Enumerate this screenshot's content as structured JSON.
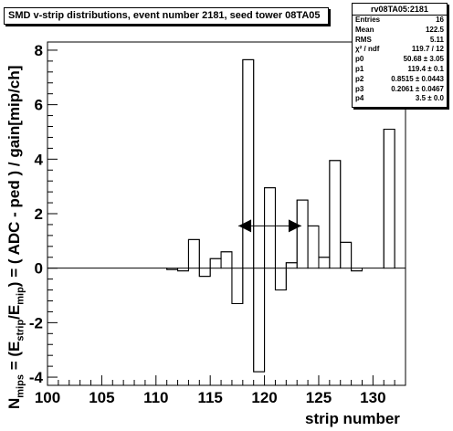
{
  "chart_data": {
    "type": "histogram",
    "title": "SMD v-strip distributions, event number 2181, seed tower 08TA05",
    "xlabel": "strip number",
    "ylabel": {
      "pre": "N",
      "pre_sub": "mips",
      "mid1": " = (E",
      "mid1_sub": "strip",
      "mid2": "/E",
      "mid2_sub": "mip",
      "post": ") = ( ADC - ped ) / gain[mip/ch]"
    },
    "xlim": [
      100,
      133
    ],
    "ylim": [
      -4.3,
      8.3
    ],
    "xticks": [
      "100",
      "105",
      "110",
      "115",
      "120",
      "125",
      "130"
    ],
    "yticks": [
      "-4",
      "-2",
      "0",
      "2",
      "4",
      "6",
      "8"
    ],
    "bins": [
      [
        100,
        0
      ],
      [
        101,
        0
      ],
      [
        102,
        0
      ],
      [
        103,
        0
      ],
      [
        104,
        0
      ],
      [
        105,
        0
      ],
      [
        106,
        0
      ],
      [
        107,
        0
      ],
      [
        108,
        0
      ],
      [
        109,
        0
      ],
      [
        110,
        0
      ],
      [
        111,
        -0.05
      ],
      [
        112,
        -0.1
      ],
      [
        113,
        1.05
      ],
      [
        114,
        -0.3
      ],
      [
        115,
        0.35
      ],
      [
        116,
        0.6
      ],
      [
        117,
        -1.3
      ],
      [
        118,
        7.65
      ],
      [
        119,
        -3.8
      ],
      [
        120,
        2.95
      ],
      [
        121,
        -0.8
      ],
      [
        122,
        0.2
      ],
      [
        123,
        2.5
      ],
      [
        124,
        1.55
      ],
      [
        125,
        0.4
      ],
      [
        126,
        3.95
      ],
      [
        127,
        0.95
      ],
      [
        128,
        -0.1
      ],
      [
        129,
        0
      ],
      [
        130,
        0
      ],
      [
        131,
        5.1
      ],
      [
        132,
        0
      ]
    ],
    "fit_arrow": {
      "x_from": 117.6,
      "x_to": 123.4,
      "y_left": 1.55,
      "y_right": 1.55
    },
    "stats": {
      "header": "rv08TA05:2181",
      "rows": [
        {
          "label": "Entries",
          "value": "16"
        },
        {
          "label": "Mean",
          "value": "122.5"
        },
        {
          "label": "RMS",
          "value": "5.11"
        },
        {
          "label": "χ² / ndf",
          "value": "119.7 / 12"
        },
        {
          "label": "p0",
          "value": "50.68 ± 3.05"
        },
        {
          "label": "p1",
          "value": "119.4 ± 0.1"
        },
        {
          "label": "p2",
          "value": "0.8515 ± 0.0443"
        },
        {
          "label": "p3",
          "value": "0.2061 ± 0.0467"
        },
        {
          "label": "p4",
          "value": "3.5 ± 0.0"
        }
      ]
    }
  }
}
